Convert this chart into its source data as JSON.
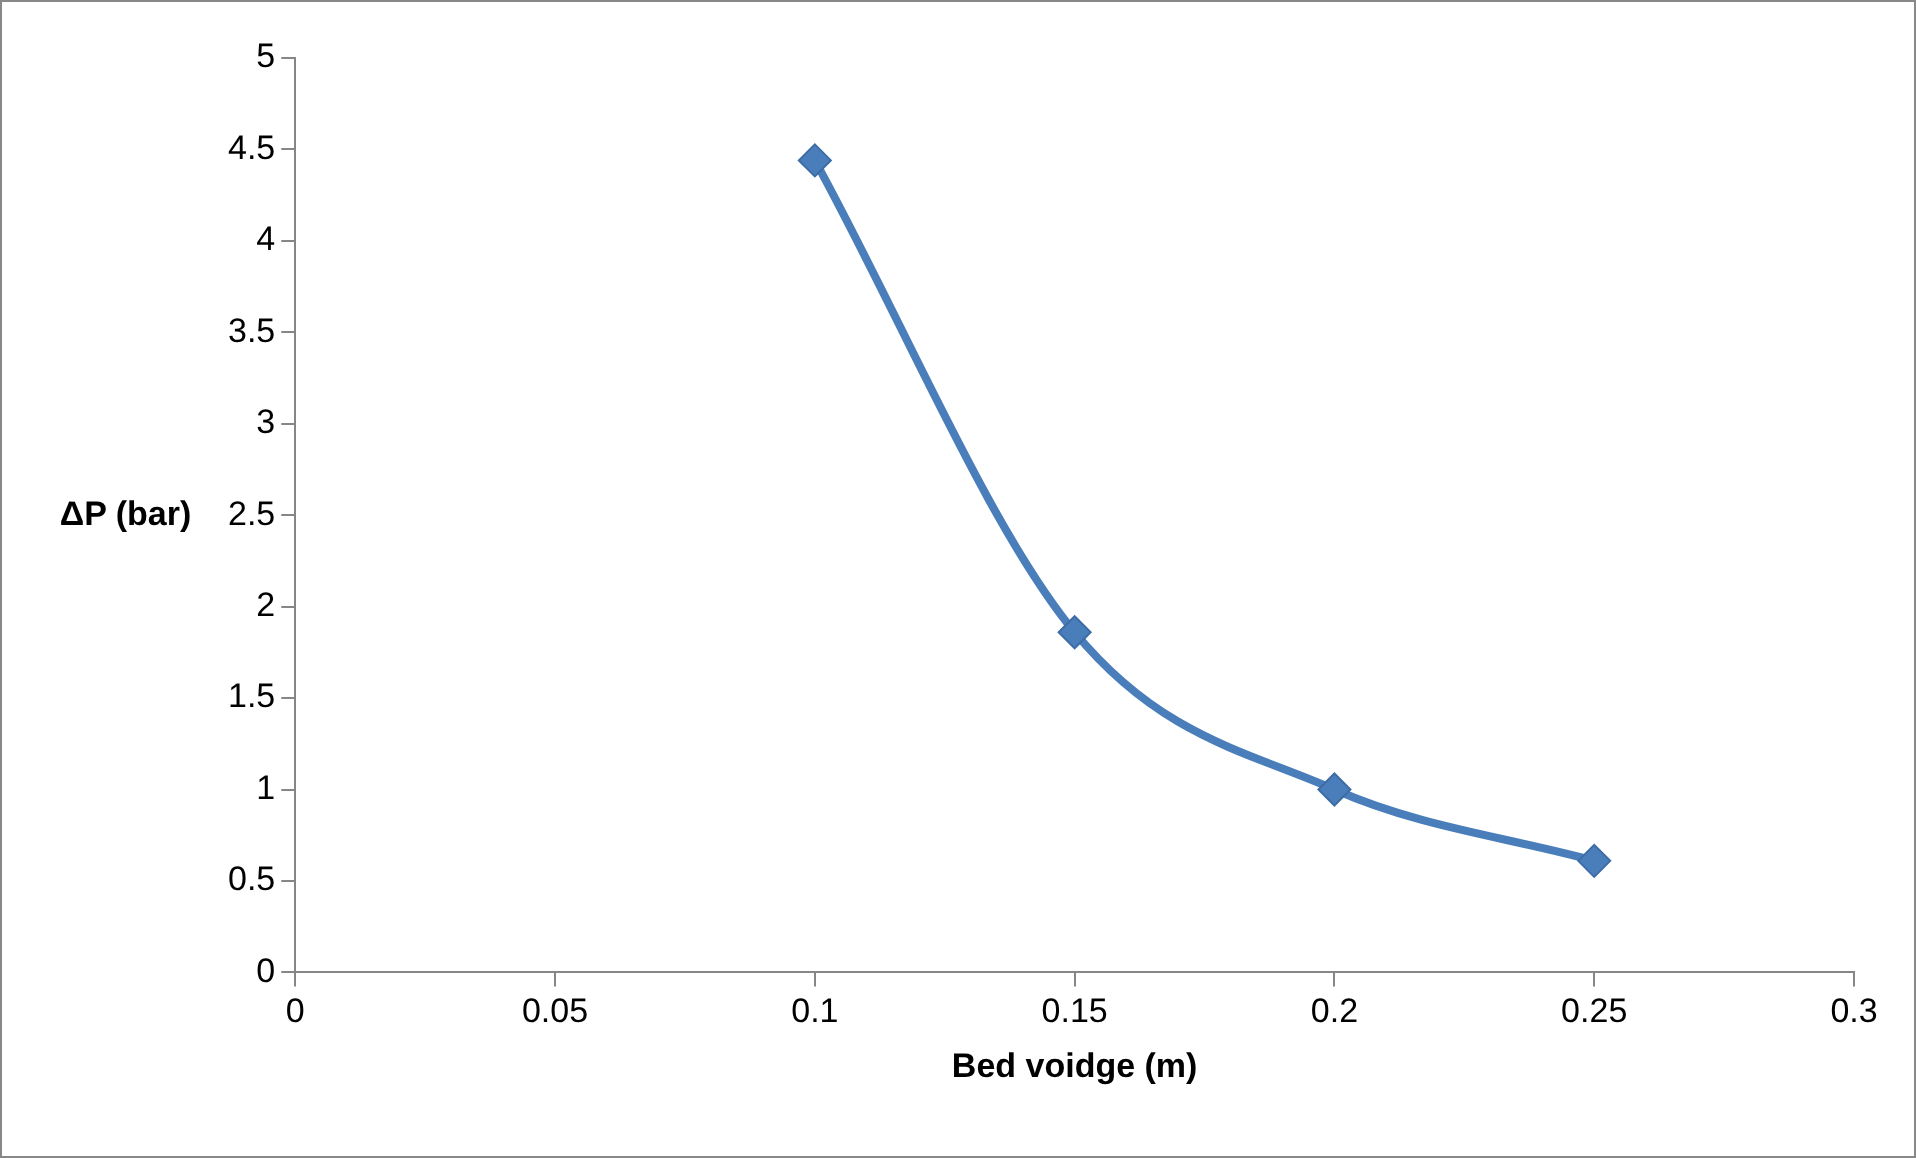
{
  "chart_data": {
    "type": "line",
    "xlabel": "Bed voidge (m)",
    "ylabel": "ΔP (bar)",
    "x": [
      0.1,
      0.15,
      0.2,
      0.25
    ],
    "series": [
      {
        "color": "#4a7ebb",
        "values": [
          4.44,
          1.86,
          1.0,
          0.61
        ]
      }
    ],
    "xlim": [
      0,
      0.3
    ],
    "xticks": [
      0,
      0.05,
      0.1,
      0.15,
      0.2,
      0.25,
      0.3
    ],
    "ylim": [
      0,
      5
    ],
    "yticks": [
      0,
      0.5,
      1,
      1.5,
      2,
      2.5,
      3,
      3.5,
      4,
      4.5,
      5
    ],
    "grid": false,
    "legend": false,
    "marker": "diamond",
    "line_style": "solid"
  }
}
